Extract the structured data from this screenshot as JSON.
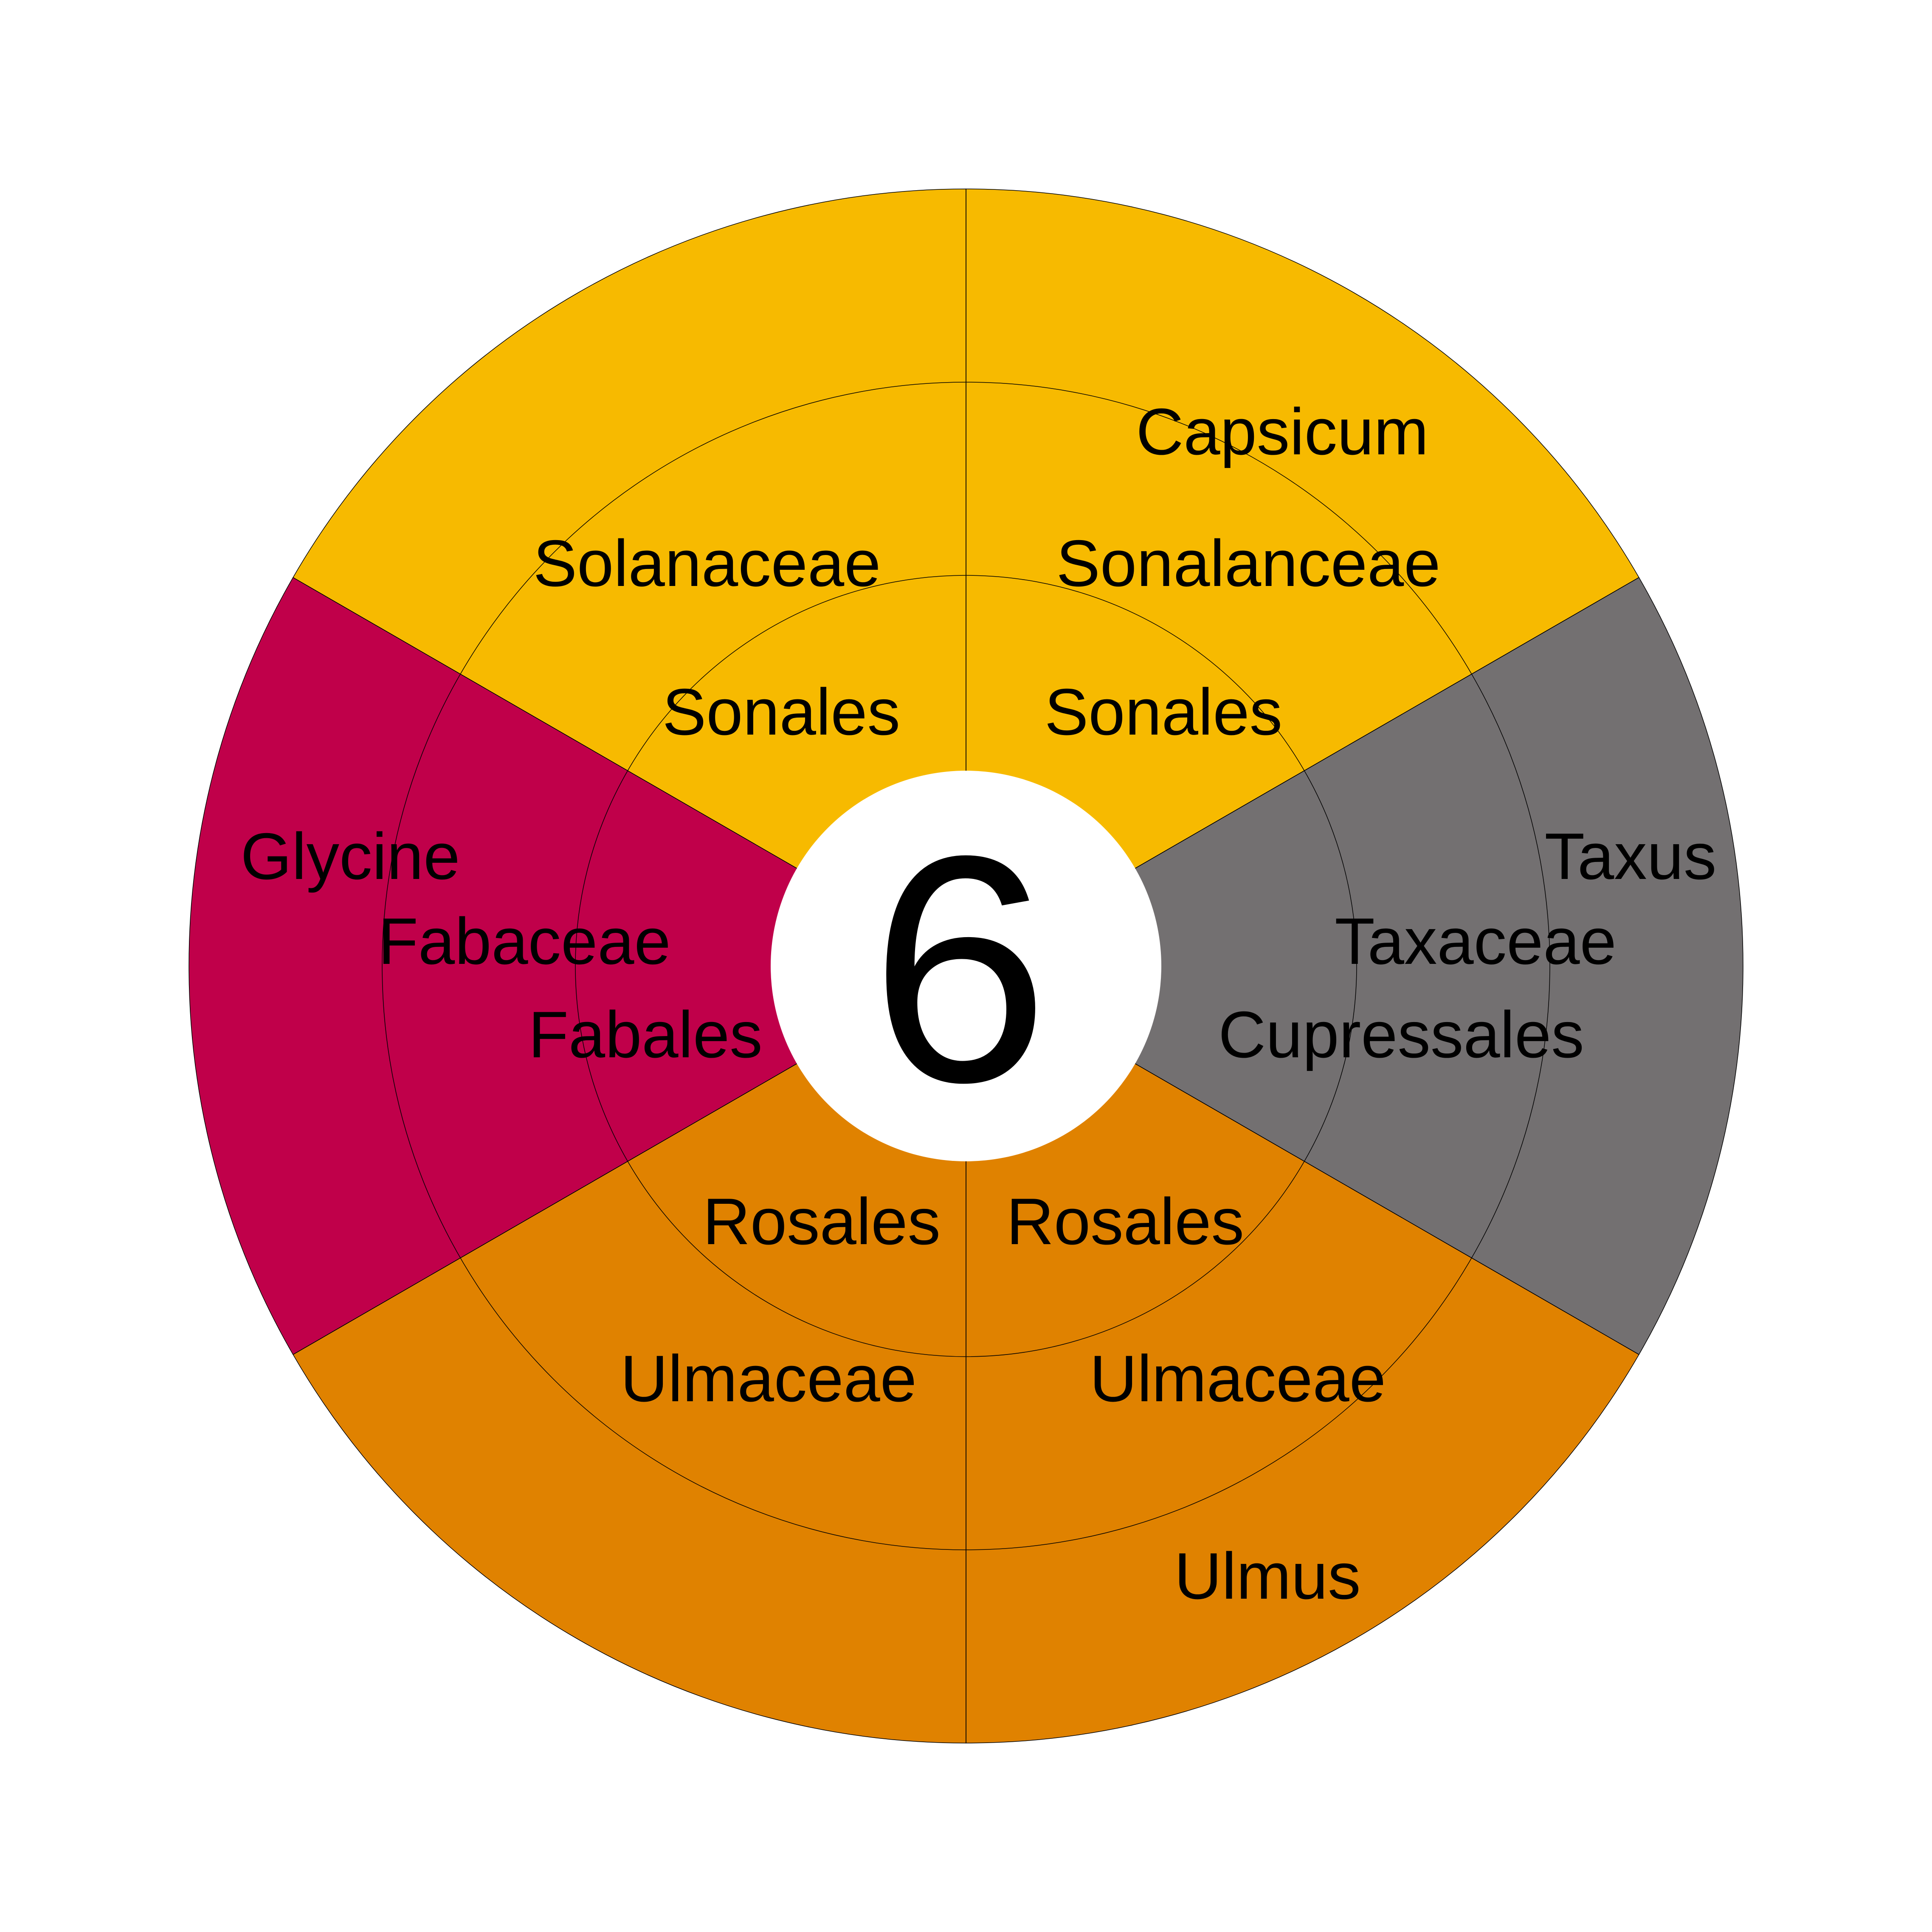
{
  "center": {
    "number": "6"
  },
  "colors": {
    "solanales": "#F7BA00",
    "cupressales": "#737071",
    "rosales": "#E08200",
    "fabales": "#C0004A",
    "center_fill": "#FFFFFF",
    "line": "#000000"
  },
  "segments": [
    {
      "id": "top-right",
      "color_key": "solanales",
      "order": "Sonales",
      "family": "Sonalanceae",
      "genus": "Capsicum"
    },
    {
      "id": "right",
      "color_key": "cupressales",
      "order": "Cupressales",
      "family": "Taxaceae",
      "genus": "Taxus"
    },
    {
      "id": "bottom-right",
      "color_key": "rosales",
      "order": "Rosales",
      "family": "Ulmaceae",
      "genus": "Ulmus"
    },
    {
      "id": "bottom-left",
      "color_key": "rosales",
      "order": "Rosales",
      "family": "Ulmaceae",
      "genus": ""
    },
    {
      "id": "left",
      "color_key": "fabales",
      "order": "Fabales",
      "family": "Fabaceae",
      "genus": "Glycine"
    },
    {
      "id": "top-left",
      "color_key": "solanales",
      "order": "Sonales",
      "family": "Solanaceae",
      "genus": ""
    }
  ]
}
